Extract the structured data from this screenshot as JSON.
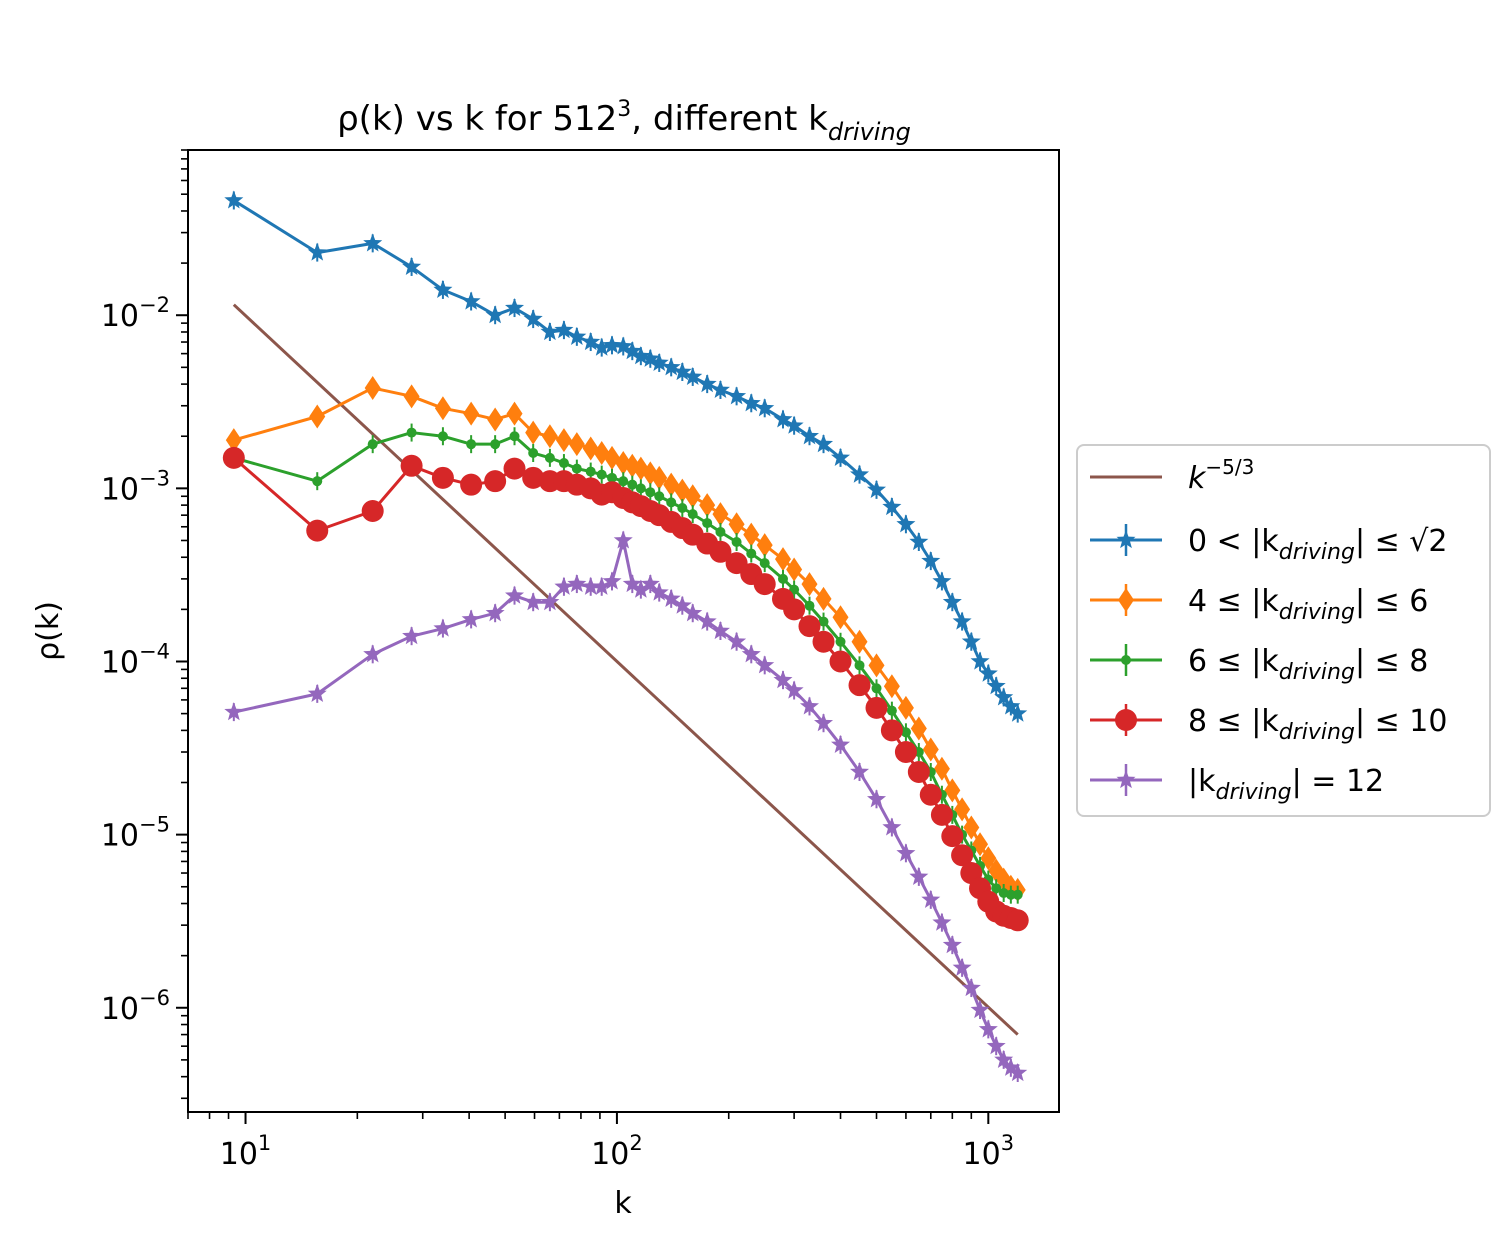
{
  "chart_data": {
    "type": "line",
    "title": {
      "base": "ρ(k) vs k for 512",
      "sup": "3",
      "mid": ", different k",
      "sub": "driving"
    },
    "xlabel": "k",
    "ylabel": "ρ(k)",
    "x_scale": "log",
    "y_scale": "log",
    "xlim": [
      7.0,
      1550.0
    ],
    "ylim": [
      2.5e-07,
      0.09
    ],
    "x_ticks": [
      {
        "value": 10,
        "base": "10",
        "exp": "1"
      },
      {
        "value": 100,
        "base": "10",
        "exp": "2"
      },
      {
        "value": 1000,
        "base": "10",
        "exp": "3"
      }
    ],
    "y_ticks": [
      {
        "value": 1e-06,
        "base": "10",
        "exp": "−6"
      },
      {
        "value": 1e-05,
        "base": "10",
        "exp": "−5"
      },
      {
        "value": 0.0001,
        "base": "10",
        "exp": "−4"
      },
      {
        "value": 0.001,
        "base": "10",
        "exp": "−3"
      },
      {
        "value": 0.01,
        "base": "10",
        "exp": "−2"
      }
    ],
    "grid": false,
    "legend_position": "center-right outside",
    "series": [
      {
        "name": "k^-5/3",
        "legend": {
          "kind": "power",
          "base": "k",
          "exp": "−5/3"
        },
        "color": "#8c564b",
        "marker": "none",
        "x": [
          9.3,
          1200
        ],
        "y": [
          0.0115,
          7e-07
        ]
      },
      {
        "name": "0 < |k_driving| ≤ √2",
        "legend": {
          "kind": "range",
          "left": "0 < |k",
          "right": "| ≤ √2"
        },
        "color": "#1f77b4",
        "marker": "star",
        "x": [
          9.3,
          15.6,
          22,
          28,
          34,
          40.5,
          47,
          53,
          59.5,
          66,
          72,
          78,
          85,
          91,
          97,
          104,
          110,
          116,
          123,
          130,
          140,
          150,
          160,
          175,
          190,
          210,
          230,
          250,
          280,
          300,
          330,
          360,
          400,
          450,
          500,
          550,
          600,
          650,
          700,
          750,
          800,
          850,
          900,
          950,
          1000,
          1050,
          1100,
          1150,
          1200
        ],
        "y": [
          0.046,
          0.023,
          0.026,
          0.019,
          0.014,
          0.012,
          0.01,
          0.011,
          0.0095,
          0.008,
          0.0082,
          0.0075,
          0.007,
          0.0065,
          0.0067,
          0.0066,
          0.0062,
          0.0058,
          0.0056,
          0.0053,
          0.005,
          0.0047,
          0.0044,
          0.004,
          0.0037,
          0.0034,
          0.0031,
          0.0029,
          0.0025,
          0.0023,
          0.002,
          0.0018,
          0.0015,
          0.0012,
          0.00098,
          0.00078,
          0.00062,
          0.00049,
          0.00038,
          0.00029,
          0.00022,
          0.00017,
          0.00013,
          0.0001,
          8.5e-05,
          7.2e-05,
          6.2e-05,
          5.5e-05,
          5e-05
        ]
      },
      {
        "name": "4 ≤ |k_driving| ≤ 6",
        "legend": {
          "kind": "range",
          "left": "4 ≤ |k",
          "right": "| ≤ 6"
        },
        "color": "#ff7f0e",
        "marker": "diamond",
        "x": [
          9.3,
          15.6,
          22,
          28,
          34,
          40.5,
          47,
          53,
          59.5,
          66,
          72,
          78,
          85,
          91,
          97,
          104,
          110,
          116,
          123,
          130,
          140,
          150,
          160,
          175,
          190,
          210,
          230,
          250,
          280,
          300,
          330,
          360,
          400,
          450,
          500,
          550,
          600,
          650,
          700,
          750,
          800,
          850,
          900,
          950,
          1000,
          1050,
          1100,
          1150,
          1200
        ],
        "y": [
          0.0019,
          0.0026,
          0.0038,
          0.0034,
          0.0029,
          0.0027,
          0.0025,
          0.0027,
          0.0021,
          0.002,
          0.0019,
          0.0018,
          0.0017,
          0.0016,
          0.0015,
          0.0014,
          0.00135,
          0.0013,
          0.00122,
          0.00115,
          0.00105,
          0.00097,
          0.0009,
          0.0008,
          0.00071,
          0.00062,
          0.00054,
          0.00047,
          0.00039,
          0.00034,
          0.00028,
          0.00023,
          0.00018,
          0.00013,
          9.5e-05,
          7.2e-05,
          5.4e-05,
          4.1e-05,
          3.1e-05,
          2.4e-05,
          1.8e-05,
          1.4e-05,
          1.1e-05,
          8.8e-06,
          7.3e-06,
          6.2e-06,
          5.5e-06,
          5e-06,
          4.8e-06
        ]
      },
      {
        "name": "6 ≤ |k_driving| ≤ 8",
        "legend": {
          "kind": "range",
          "left": "6 ≤ |k",
          "right": "| ≤ 8"
        },
        "color": "#2ca02c",
        "marker": "dot",
        "x": [
          9.3,
          15.6,
          22,
          28,
          34,
          40.5,
          47,
          53,
          59.5,
          66,
          72,
          78,
          85,
          91,
          97,
          104,
          110,
          116,
          123,
          130,
          140,
          150,
          160,
          175,
          190,
          210,
          230,
          250,
          280,
          300,
          330,
          360,
          400,
          450,
          500,
          550,
          600,
          650,
          700,
          750,
          800,
          850,
          900,
          950,
          1000,
          1050,
          1100,
          1150,
          1200
        ],
        "y": [
          0.0015,
          0.0011,
          0.0018,
          0.0021,
          0.002,
          0.0018,
          0.0018,
          0.002,
          0.0016,
          0.0015,
          0.0014,
          0.0013,
          0.00125,
          0.0012,
          0.00115,
          0.0011,
          0.00105,
          0.001,
          0.00095,
          0.0009,
          0.00083,
          0.00077,
          0.00071,
          0.00063,
          0.00056,
          0.00049,
          0.00042,
          0.00037,
          0.0003,
          0.00026,
          0.00021,
          0.00017,
          0.00013,
          9.5e-05,
          7e-05,
          5.2e-05,
          3.9e-05,
          3e-05,
          2.3e-05,
          1.7e-05,
          1.3e-05,
          1e-05,
          8.1e-06,
          6.6e-06,
          5.5e-06,
          4.9e-06,
          4.6e-06,
          4.5e-06,
          4.5e-06
        ]
      },
      {
        "name": "8 ≤ |k_driving| ≤ 10",
        "legend": {
          "kind": "range",
          "left": "8 ≤ |k",
          "right": "| ≤ 10"
        },
        "color": "#d62728",
        "marker": "circle",
        "x": [
          9.3,
          15.6,
          22,
          28,
          34,
          40.5,
          47,
          53,
          59.5,
          66,
          72,
          78,
          85,
          91,
          97,
          104,
          110,
          116,
          123,
          130,
          140,
          150,
          160,
          175,
          190,
          210,
          230,
          250,
          280,
          300,
          330,
          360,
          400,
          450,
          500,
          550,
          600,
          650,
          700,
          750,
          800,
          850,
          900,
          950,
          1000,
          1050,
          1100,
          1150,
          1200
        ],
        "y": [
          0.0015,
          0.00057,
          0.00074,
          0.00135,
          0.00115,
          0.00105,
          0.0011,
          0.0013,
          0.00115,
          0.0011,
          0.0011,
          0.00105,
          0.001,
          0.00092,
          0.00095,
          0.00088,
          0.00083,
          0.00079,
          0.00074,
          0.0007,
          0.00064,
          0.00059,
          0.00054,
          0.00048,
          0.00043,
          0.00037,
          0.00032,
          0.00028,
          0.00023,
          0.0002,
          0.00016,
          0.00013,
          0.0001,
          7.3e-05,
          5.4e-05,
          4e-05,
          3e-05,
          2.3e-05,
          1.7e-05,
          1.3e-05,
          9.8e-06,
          7.6e-06,
          6e-06,
          4.9e-06,
          4.1e-06,
          3.6e-06,
          3.4e-06,
          3.3e-06,
          3.2e-06
        ]
      },
      {
        "name": "|k_driving| = 12",
        "legend": {
          "kind": "range",
          "left": "|k",
          "right": "| = 12"
        },
        "color": "#9467bd",
        "marker": "star",
        "x": [
          9.3,
          15.6,
          22,
          28,
          34,
          40.5,
          47,
          53,
          59.5,
          66,
          72,
          78,
          85,
          91,
          97,
          104,
          110,
          116,
          123,
          130,
          140,
          150,
          160,
          175,
          190,
          210,
          230,
          250,
          280,
          300,
          330,
          360,
          400,
          450,
          500,
          550,
          600,
          650,
          700,
          750,
          800,
          850,
          900,
          950,
          1000,
          1050,
          1100,
          1150,
          1200
        ],
        "y": [
          5.1e-05,
          6.5e-05,
          0.00011,
          0.00014,
          0.000155,
          0.000175,
          0.00019,
          0.00024,
          0.00022,
          0.00022,
          0.00027,
          0.00028,
          0.00027,
          0.00027,
          0.00029,
          0.0005,
          0.00028,
          0.00026,
          0.00028,
          0.00025,
          0.00023,
          0.00021,
          0.00019,
          0.00017,
          0.00015,
          0.00013,
          0.00011,
          9.5e-05,
          7.8e-05,
          6.8e-05,
          5.5e-05,
          4.4e-05,
          3.3e-05,
          2.3e-05,
          1.6e-05,
          1.1e-05,
          7.8e-06,
          5.7e-06,
          4.2e-06,
          3.1e-06,
          2.3e-06,
          1.7e-06,
          1.3e-06,
          9.7e-07,
          7.5e-07,
          6e-07,
          5e-07,
          4.5e-07,
          4.2e-07
        ]
      }
    ]
  }
}
